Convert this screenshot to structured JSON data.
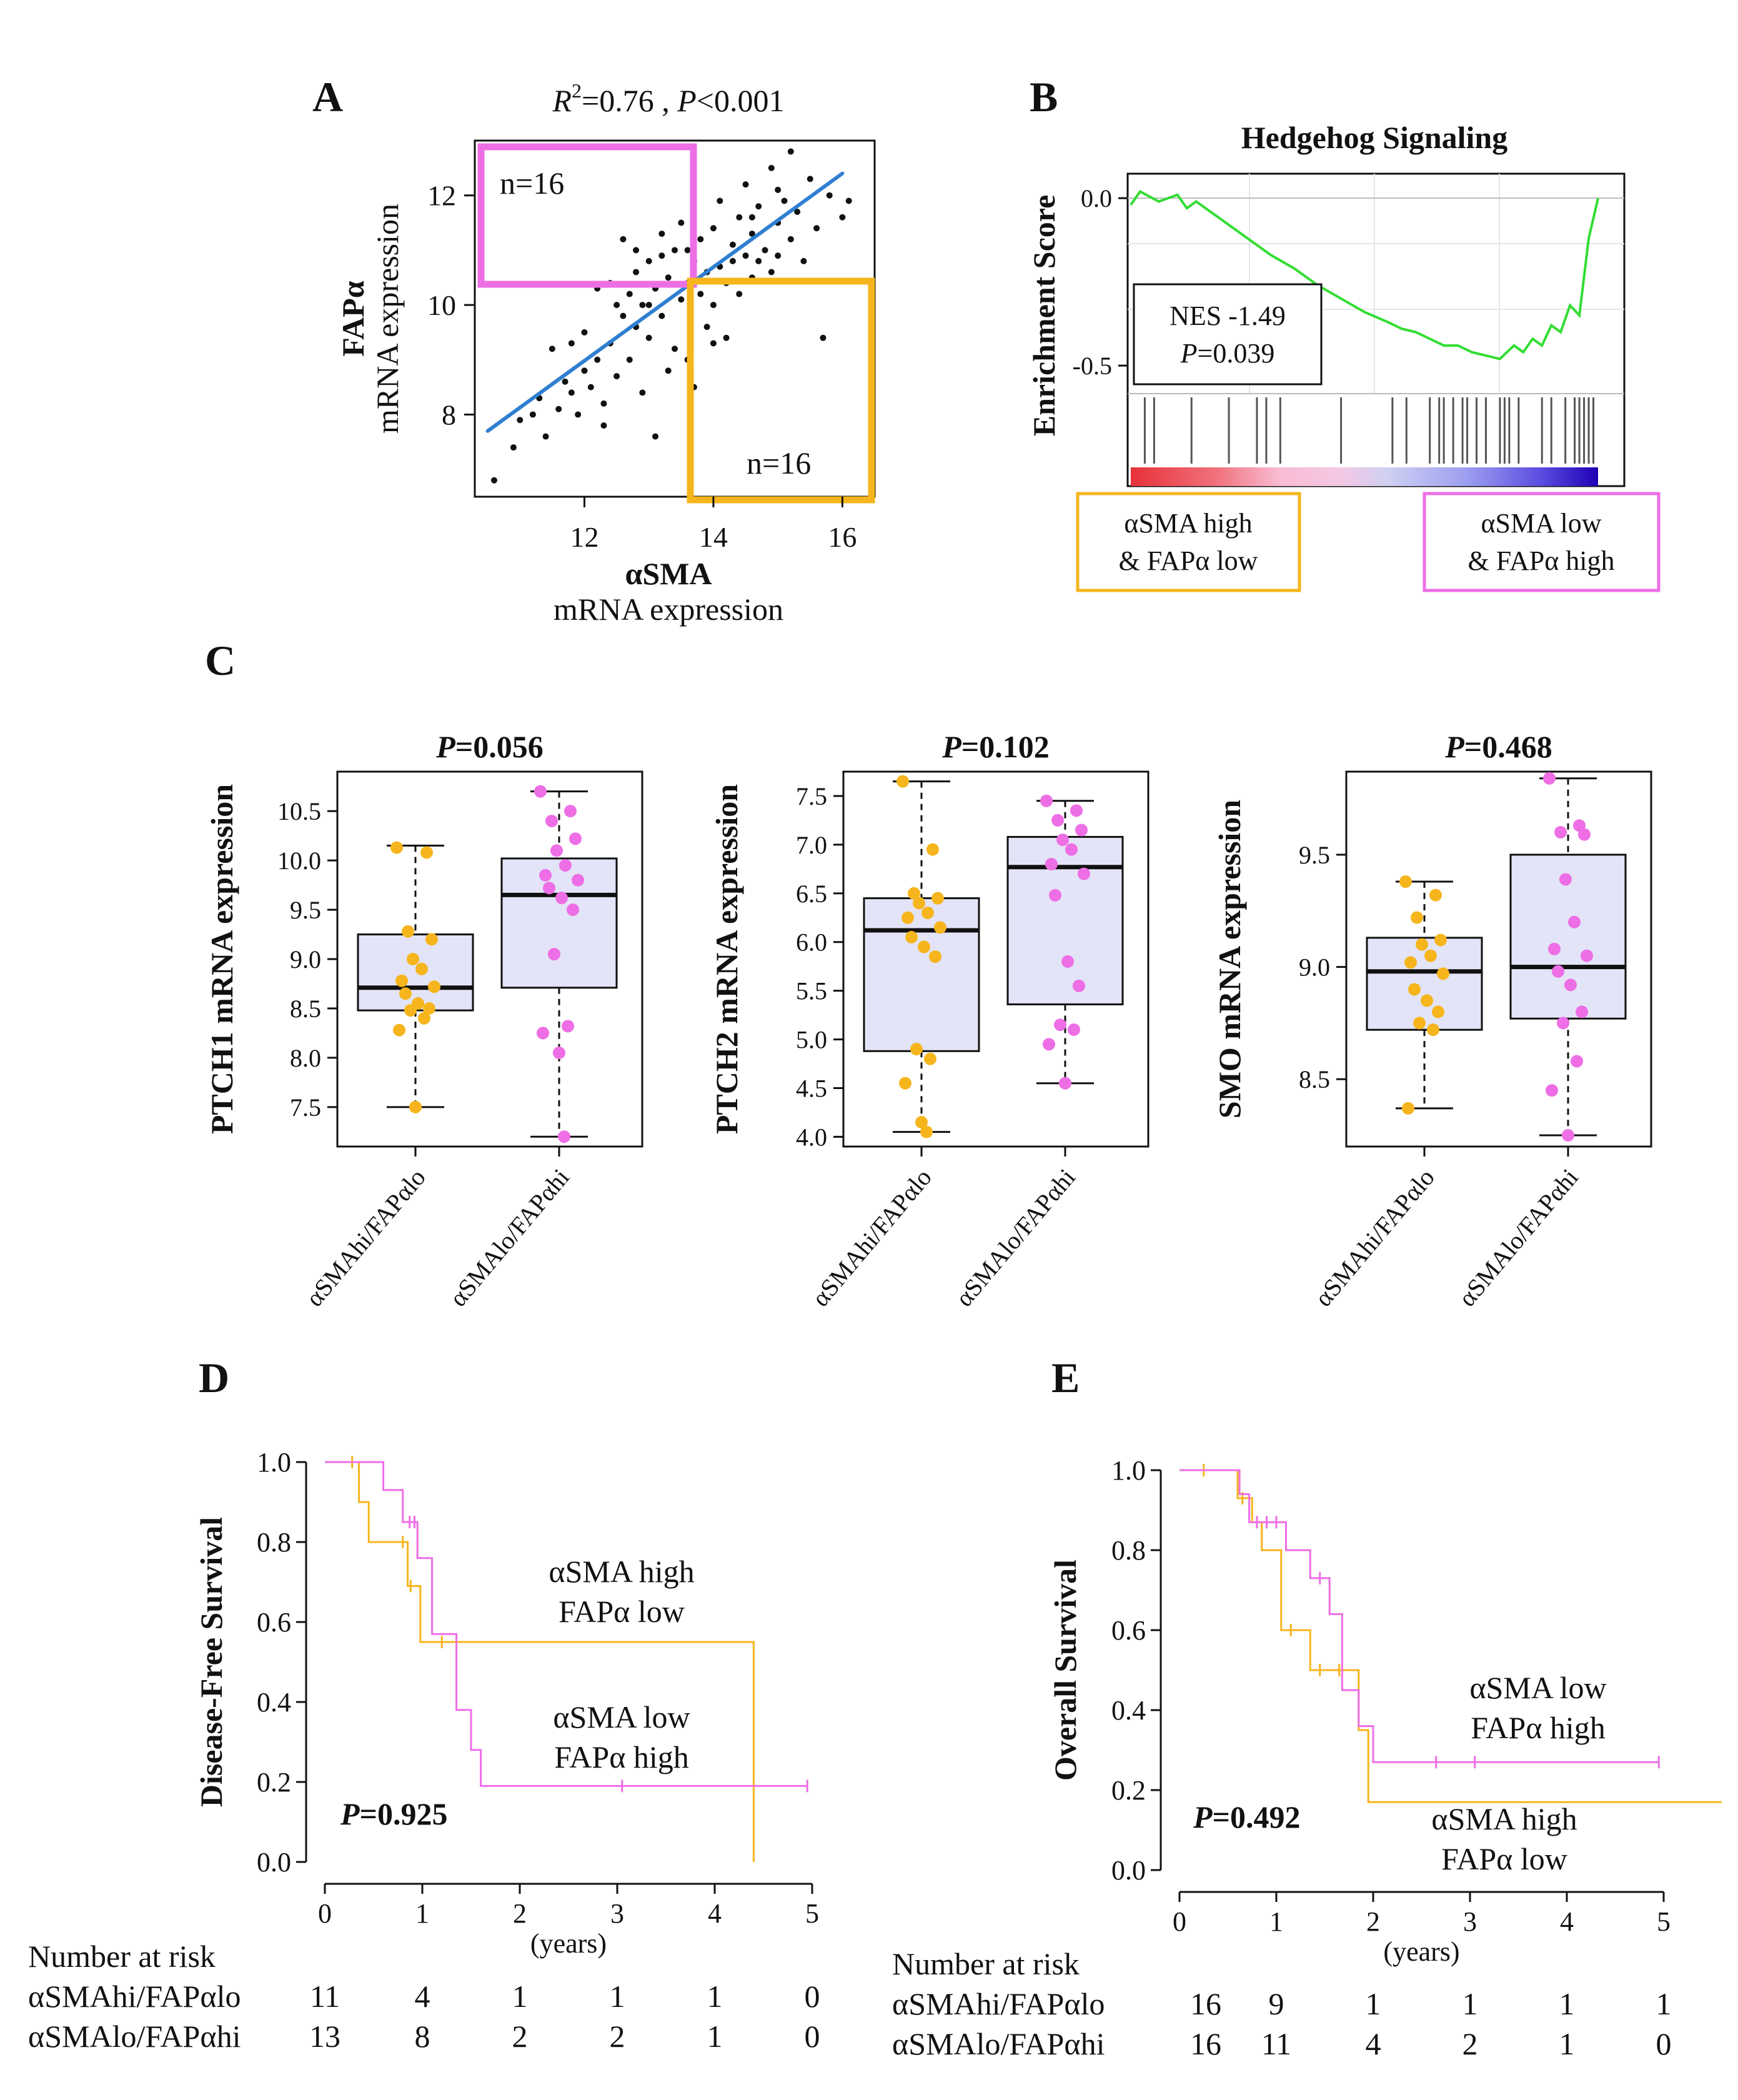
{
  "colors": {
    "orange": "#f6b51c",
    "magenta": "#ee6ee6",
    "blue": "#2f7fd1",
    "green": "#33dd33",
    "box_fill": "#e3e4f7"
  },
  "panel_labels": [
    "A",
    "B",
    "C",
    "D",
    "E"
  ],
  "chart_data": [
    {
      "id": "A",
      "type": "scatter",
      "stat_text": {
        "r": "R",
        "sup": "2",
        "rest1": "=0.76 , ",
        "p": "P",
        "rest2": "<0.001"
      },
      "xlabel": "αSMA",
      "xlabel2": "mRNA expression",
      "ylabel": "FAPα",
      "ylabel2": "mRNA expression",
      "xlim": [
        10.3,
        16.5
      ],
      "ylim": [
        6.5,
        13.0
      ],
      "x_ticks": [
        "12",
        "14",
        "16"
      ],
      "y_ticks": [
        "8",
        "10",
        "12"
      ],
      "regression": {
        "x": [
          10.5,
          16.0
        ],
        "y": [
          7.7,
          12.4
        ]
      },
      "quadrant_labels": [
        "n=16",
        "n=16"
      ],
      "points": [
        [
          10.6,
          6.8
        ],
        [
          10.9,
          7.4
        ],
        [
          11.0,
          7.9
        ],
        [
          11.2,
          8.0
        ],
        [
          11.3,
          8.3
        ],
        [
          11.4,
          7.6
        ],
        [
          11.5,
          9.2
        ],
        [
          11.6,
          8.1
        ],
        [
          11.7,
          8.6
        ],
        [
          11.8,
          8.4
        ],
        [
          11.9,
          8.0
        ],
        [
          12.0,
          8.8
        ],
        [
          12.0,
          9.5
        ],
        [
          12.1,
          8.5
        ],
        [
          12.2,
          9.0
        ],
        [
          12.3,
          8.2
        ],
        [
          12.3,
          7.8
        ],
        [
          12.4,
          9.3
        ],
        [
          12.5,
          10.0
        ],
        [
          12.5,
          8.7
        ],
        [
          12.6,
          9.8
        ],
        [
          12.6,
          11.2
        ],
        [
          12.7,
          10.2
        ],
        [
          12.7,
          9.0
        ],
        [
          12.8,
          10.6
        ],
        [
          12.8,
          9.6
        ],
        [
          12.9,
          8.4
        ],
        [
          12.9,
          10.0
        ],
        [
          13.0,
          10.8
        ],
        [
          13.0,
          9.4
        ],
        [
          13.1,
          10.3
        ],
        [
          13.1,
          7.6
        ],
        [
          13.2,
          10.9
        ],
        [
          13.2,
          9.8
        ],
        [
          13.3,
          10.5
        ],
        [
          13.3,
          8.8
        ],
        [
          13.4,
          11.0
        ],
        [
          13.4,
          9.2
        ],
        [
          13.5,
          10.1
        ],
        [
          13.5,
          11.5
        ],
        [
          13.6,
          10.4
        ],
        [
          13.6,
          9.0
        ],
        [
          13.7,
          10.8
        ],
        [
          13.7,
          8.5
        ],
        [
          13.8,
          10.2
        ],
        [
          13.8,
          11.2
        ],
        [
          13.9,
          10.6
        ],
        [
          13.9,
          9.6
        ],
        [
          14.0,
          11.4
        ],
        [
          14.0,
          10.0
        ],
        [
          14.1,
          10.7
        ],
        [
          14.1,
          11.9
        ],
        [
          14.2,
          10.4
        ],
        [
          14.2,
          9.4
        ],
        [
          14.3,
          11.1
        ],
        [
          14.3,
          10.8
        ],
        [
          14.4,
          11.6
        ],
        [
          14.4,
          10.2
        ],
        [
          14.5,
          10.9
        ],
        [
          14.5,
          12.2
        ],
        [
          14.6,
          11.3
        ],
        [
          14.6,
          10.5
        ],
        [
          14.7,
          10.8
        ],
        [
          14.7,
          11.8
        ],
        [
          14.8,
          11.0
        ],
        [
          14.9,
          12.5
        ],
        [
          14.9,
          10.6
        ],
        [
          15.0,
          11.5
        ],
        [
          15.0,
          10.9
        ],
        [
          15.1,
          11.9
        ],
        [
          15.2,
          11.2
        ],
        [
          15.2,
          12.8
        ],
        [
          15.3,
          11.7
        ],
        [
          15.4,
          10.8
        ],
        [
          15.5,
          12.3
        ],
        [
          15.6,
          11.4
        ],
        [
          15.7,
          9.4
        ],
        [
          15.8,
          12.0
        ],
        [
          16.0,
          11.6
        ],
        [
          16.1,
          11.9
        ],
        [
          12.8,
          11.0
        ],
        [
          13.2,
          11.3
        ],
        [
          12.4,
          10.4
        ],
        [
          13.6,
          11.0
        ],
        [
          14.0,
          9.3
        ],
        [
          11.8,
          9.3
        ],
        [
          12.2,
          10.3
        ],
        [
          13.0,
          10.0
        ],
        [
          14.6,
          11.6
        ],
        [
          15.0,
          12.1
        ]
      ]
    },
    {
      "id": "B",
      "type": "line",
      "title": "Hedgehog Signaling",
      "ylabel": "Enrichment Score",
      "y_ticks": [
        "0.0",
        "-0.5"
      ],
      "ylim": [
        -0.58,
        0.06
      ],
      "nes_text": "NES -1.49",
      "p_text": {
        "p": "P",
        "rest": "=0.039"
      },
      "left_label": [
        "αSMA high",
        "& FAPα low"
      ],
      "right_label": [
        "αSMA low",
        "& FAPα high"
      ],
      "curve": {
        "x": [
          0.0,
          0.02,
          0.06,
          0.1,
          0.12,
          0.14,
          0.16,
          0.2,
          0.25,
          0.3,
          0.35,
          0.4,
          0.45,
          0.5,
          0.55,
          0.58,
          0.61,
          0.64,
          0.67,
          0.7,
          0.73,
          0.76,
          0.79,
          0.82,
          0.84,
          0.86,
          0.88,
          0.9,
          0.92,
          0.94,
          0.96,
          0.98,
          1.0
        ],
        "y": [
          -0.02,
          0.02,
          -0.01,
          0.01,
          -0.03,
          -0.01,
          -0.03,
          -0.07,
          -0.12,
          -0.17,
          -0.21,
          -0.26,
          -0.3,
          -0.34,
          -0.37,
          -0.39,
          -0.4,
          -0.42,
          -0.44,
          -0.44,
          -0.46,
          -0.47,
          -0.48,
          -0.44,
          -0.46,
          -0.42,
          -0.44,
          -0.38,
          -0.4,
          -0.32,
          -0.35,
          -0.12,
          0.0
        ]
      },
      "hits": [
        0.03,
        0.05,
        0.13,
        0.21,
        0.27,
        0.29,
        0.32,
        0.45,
        0.56,
        0.59,
        0.64,
        0.66,
        0.67,
        0.69,
        0.71,
        0.72,
        0.74,
        0.76,
        0.79,
        0.8,
        0.81,
        0.83,
        0.88,
        0.9,
        0.93,
        0.95,
        0.96,
        0.97,
        0.98,
        0.99
      ]
    },
    {
      "id": "C1",
      "type": "box",
      "title": {
        "p": "P",
        "rest": "=0.056"
      },
      "ylabel": "PTCH1 mRNA expression",
      "categories": [
        "αSMAhi/FAPαlo",
        "αSMAlo/FAPαhi"
      ],
      "ylim": [
        7.1,
        10.9
      ],
      "y_ticks": [
        "7.5",
        "8.0",
        "8.5",
        "9.0",
        "9.5",
        "10.0",
        "10.5"
      ],
      "boxes": [
        {
          "q1": 8.48,
          "median": 8.71,
          "q3": 9.25,
          "whislo": 7.5,
          "whishi": 10.15
        },
        {
          "q1": 8.71,
          "median": 9.65,
          "q3": 10.02,
          "whislo": 7.2,
          "whishi": 10.7
        }
      ],
      "points": [
        [
          10.13,
          10.08,
          9.28,
          9.2,
          9.0,
          8.9,
          8.78,
          8.72,
          8.65,
          8.55,
          8.5,
          8.48,
          8.4,
          8.28,
          7.5
        ],
        [
          10.7,
          10.5,
          10.4,
          10.22,
          10.1,
          9.95,
          9.85,
          9.8,
          9.72,
          9.62,
          9.5,
          9.05,
          8.32,
          8.25,
          8.05,
          7.2
        ]
      ]
    },
    {
      "id": "C2",
      "type": "box",
      "title": {
        "p": "P",
        "rest": "=0.102"
      },
      "ylabel": "PTCH2 mRNA expression",
      "categories": [
        "αSMAhi/FAPαlo",
        "αSMAlo/FAPαhi"
      ],
      "ylim": [
        3.9,
        7.75
      ],
      "y_ticks": [
        "4.0",
        "4.5",
        "5.0",
        "5.5",
        "6.0",
        "6.5",
        "7.0",
        "7.5"
      ],
      "boxes": [
        {
          "q1": 4.88,
          "median": 6.12,
          "q3": 6.45,
          "whislo": 4.05,
          "whishi": 7.65
        },
        {
          "q1": 5.36,
          "median": 6.77,
          "q3": 7.08,
          "whislo": 4.55,
          "whishi": 7.45
        }
      ],
      "points": [
        [
          7.65,
          6.95,
          6.5,
          6.45,
          6.4,
          6.3,
          6.25,
          6.15,
          6.05,
          5.95,
          5.85,
          4.9,
          4.8,
          4.55,
          4.15,
          4.05
        ],
        [
          7.45,
          7.35,
          7.25,
          7.15,
          7.05,
          6.95,
          6.8,
          6.7,
          6.48,
          5.8,
          5.55,
          5.15,
          5.1,
          4.95,
          4.55
        ]
      ]
    },
    {
      "id": "C3",
      "type": "box",
      "title": {
        "p": "P",
        "rest": "=0.468"
      },
      "ylabel": "SMO mRNA expression",
      "categories": [
        "αSMAhi/FAPαlo",
        "αSMAlo/FAPαhi"
      ],
      "ylim": [
        8.2,
        9.87
      ],
      "y_ticks": [
        "8.5",
        "9.0",
        "9.5"
      ],
      "boxes": [
        {
          "q1": 8.72,
          "median": 8.98,
          "q3": 9.13,
          "whislo": 8.37,
          "whishi": 9.38
        },
        {
          "q1": 8.77,
          "median": 9.0,
          "q3": 9.5,
          "whislo": 8.25,
          "whishi": 9.84
        }
      ],
      "points": [
        [
          9.38,
          9.32,
          9.22,
          9.12,
          9.1,
          9.05,
          9.02,
          8.97,
          8.9,
          8.85,
          8.8,
          8.75,
          8.72,
          8.37
        ],
        [
          9.84,
          9.63,
          9.6,
          9.59,
          9.39,
          9.2,
          9.08,
          9.05,
          8.98,
          8.92,
          8.8,
          8.75,
          8.58,
          8.45,
          8.25
        ]
      ]
    },
    {
      "id": "D",
      "type": "line",
      "ylabel": "Disease-Free Survival",
      "xlabel": "(years)",
      "xlim": [
        0,
        5
      ],
      "ylim": [
        0,
        1
      ],
      "x_ticks": [
        "0",
        "1",
        "2",
        "3",
        "4",
        "5"
      ],
      "y_ticks": [
        "0.0",
        "0.2",
        "0.4",
        "0.6",
        "0.8",
        "1.0"
      ],
      "p_text": {
        "p": "P",
        "rest": "=0.925"
      },
      "series": [
        {
          "name": "αSMAhi/FAPαlo",
          "color_key": "orange",
          "x": [
            0,
            0.35,
            0.35,
            0.45,
            0.45,
            0.85,
            0.85,
            0.98,
            0.98,
            4.4,
            4.4
          ],
          "y": [
            1,
            1,
            0.9,
            0.9,
            0.8,
            0.8,
            0.69,
            0.69,
            0.55,
            0.55,
            0.0
          ],
          "censor": [
            [
              0.28,
              1.0
            ],
            [
              0.8,
              0.8
            ],
            [
              0.88,
              0.69
            ],
            [
              1.2,
              0.55
            ],
            [
              1.35,
              0.55
            ]
          ]
        },
        {
          "name": "αSMAlo/FAPαhi",
          "color_key": "magenta",
          "x": [
            0,
            0.6,
            0.6,
            0.8,
            0.8,
            0.95,
            0.95,
            1.1,
            1.1,
            1.35,
            1.35,
            1.5,
            1.5,
            1.6,
            1.6,
            4.95
          ],
          "y": [
            1,
            1,
            0.93,
            0.93,
            0.85,
            0.85,
            0.76,
            0.76,
            0.57,
            0.57,
            0.38,
            0.38,
            0.28,
            0.28,
            0.19,
            0.19
          ],
          "censor": [
            [
              0.87,
              0.85
            ],
            [
              0.92,
              0.85
            ],
            [
              3.05,
              0.19
            ],
            [
              4.95,
              0.19
            ]
          ]
        }
      ],
      "annotations": [
        [
          "αSMA high",
          "FAPα low"
        ],
        [
          "αSMA low",
          "FAPα high"
        ]
      ],
      "risk_table": {
        "title": "Number at risk",
        "rows": [
          {
            "label": "αSMAhi/FAPαlo",
            "values": [
              "11",
              "4",
              "1",
              "1",
              "1",
              "0"
            ]
          },
          {
            "label": "αSMAlo/FAPαhi",
            "values": [
              "13",
              "8",
              "2",
              "2",
              "1",
              "0"
            ]
          }
        ]
      }
    },
    {
      "id": "E",
      "type": "line",
      "ylabel": "Overall Survival",
      "xlabel": "(years)",
      "xlim": [
        0,
        5
      ],
      "ylim": [
        0,
        1
      ],
      "x_ticks": [
        "0",
        "1",
        "2",
        "3",
        "4",
        "5"
      ],
      "y_ticks": [
        "0.0",
        "0.2",
        "0.4",
        "0.6",
        "0.8",
        "1.0"
      ],
      "p_text": {
        "p": "P",
        "rest": "=0.492"
      },
      "series": [
        {
          "name": "αSMAhi/FAPαlo",
          "color_key": "orange",
          "x": [
            0,
            0.6,
            0.6,
            0.75,
            0.75,
            0.85,
            0.85,
            1.05,
            1.05,
            1.35,
            1.35,
            1.85,
            1.85,
            1.95,
            1.95,
            5.6
          ],
          "y": [
            1,
            1,
            0.93,
            0.93,
            0.87,
            0.87,
            0.8,
            0.8,
            0.6,
            0.6,
            0.5,
            0.5,
            0.35,
            0.35,
            0.17,
            0.17
          ],
          "censor": [
            [
              0.25,
              1.0
            ],
            [
              0.65,
              0.93
            ],
            [
              1.15,
              0.6
            ],
            [
              1.45,
              0.5
            ],
            [
              1.65,
              0.5
            ]
          ]
        },
        {
          "name": "αSMAlo/FAPαhi",
          "color_key": "magenta",
          "x": [
            0,
            0.62,
            0.62,
            0.72,
            0.72,
            1.1,
            1.1,
            1.35,
            1.35,
            1.55,
            1.55,
            1.68,
            1.68,
            1.85,
            1.85,
            2.0,
            2.0,
            4.95
          ],
          "y": [
            1,
            1,
            0.94,
            0.94,
            0.87,
            0.87,
            0.8,
            0.8,
            0.73,
            0.73,
            0.64,
            0.64,
            0.45,
            0.45,
            0.36,
            0.36,
            0.27,
            0.27
          ],
          "censor": [
            [
              0.8,
              0.87
            ],
            [
              0.9,
              0.87
            ],
            [
              1.0,
              0.87
            ],
            [
              1.45,
              0.73
            ],
            [
              2.65,
              0.27
            ],
            [
              3.05,
              0.27
            ],
            [
              4.95,
              0.27
            ]
          ]
        }
      ],
      "annotations": [
        [
          "αSMA low",
          "FAPα high"
        ],
        [
          "αSMA high",
          "FAPα low"
        ]
      ],
      "risk_table": {
        "title": "Number at risk",
        "rows": [
          {
            "label": "αSMAhi/FAPαlo",
            "values": [
              "16",
              "9",
              "1",
              "1",
              "1",
              "1"
            ]
          },
          {
            "label": "αSMAlo/FAPαhi",
            "values": [
              "16",
              "11",
              "4",
              "2",
              "1",
              "0"
            ]
          }
        ]
      }
    }
  ]
}
